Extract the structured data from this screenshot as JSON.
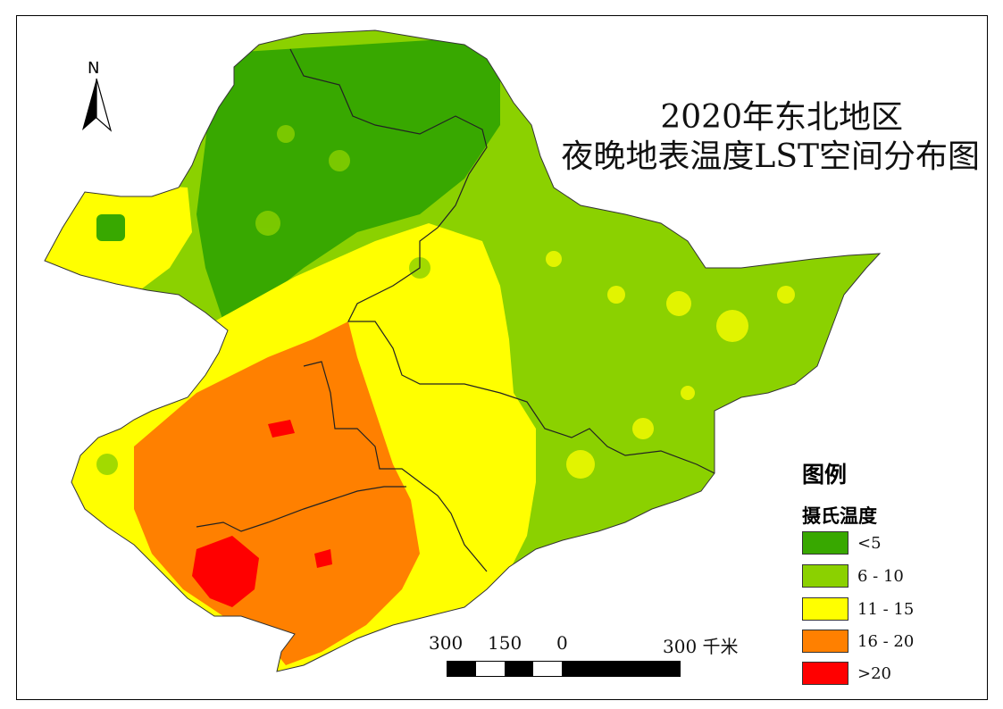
{
  "title": {
    "line1": "2020年东北地区",
    "line2": "夜晚地表温度LST空间分布图"
  },
  "north_arrow": {
    "label": "N"
  },
  "legend": {
    "title": "图例",
    "subtitle": "摄氏温度",
    "items": [
      {
        "label": "<5",
        "color": "#38a800"
      },
      {
        "label": "6 - 10",
        "color": "#8bd100"
      },
      {
        "label": "11 - 15",
        "color": "#ffff00"
      },
      {
        "label": "16 - 20",
        "color": "#ff8000"
      },
      {
        "label": ">20",
        "color": "#ff0000"
      }
    ]
  },
  "scale_bar": {
    "labels": [
      "300",
      "150",
      "0",
      "300 千米"
    ]
  },
  "colors": {
    "dark_green": "#38a800",
    "light_green": "#8bd100",
    "yellow": "#ffff00",
    "orange": "#ff8000",
    "red": "#ff0000",
    "boundary": "#333333"
  }
}
